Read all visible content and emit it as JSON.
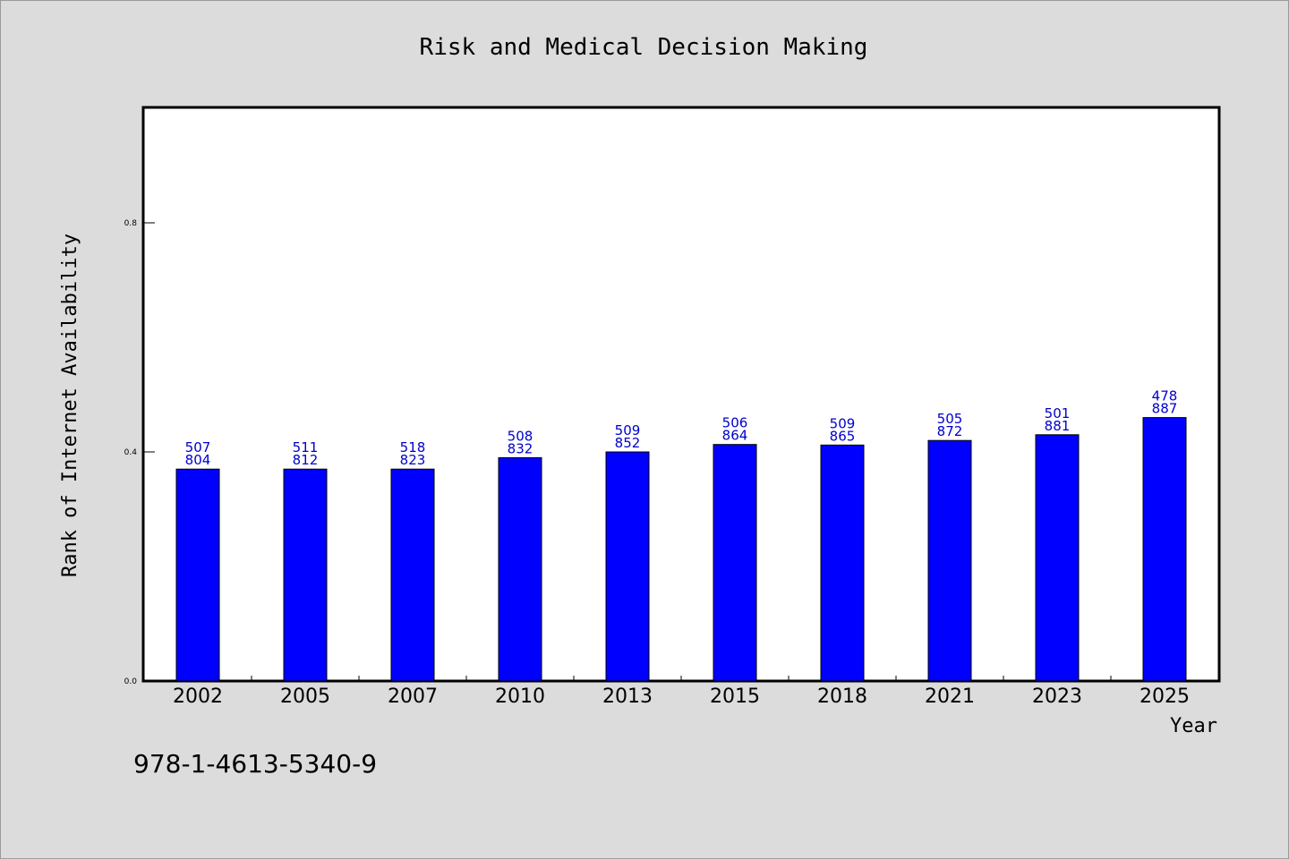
{
  "chart_data": {
    "type": "bar",
    "title": "Risk and Medical Decision Making",
    "xlabel": "Year",
    "ylabel": "Rank of Internet Availability",
    "categories": [
      "2002",
      "2005",
      "2007",
      "2010",
      "2013",
      "2015",
      "2018",
      "2021",
      "2023",
      "2025"
    ],
    "values": [
      0.37,
      0.37,
      0.37,
      0.39,
      0.4,
      0.413,
      0.412,
      0.42,
      0.43,
      0.46
    ],
    "data_labels": [
      [
        "507",
        "804"
      ],
      [
        "511",
        "812"
      ],
      [
        "518",
        "823"
      ],
      [
        "508",
        "832"
      ],
      [
        "509",
        "852"
      ],
      [
        "506",
        "864"
      ],
      [
        "509",
        "865"
      ],
      [
        "505",
        "872"
      ],
      [
        "501",
        "881"
      ],
      [
        "478",
        "887"
      ]
    ],
    "ylim": [
      0,
      1.0
    ],
    "yticks": [
      0.0,
      0.4,
      0.8
    ],
    "ytick_labels": [
      "0.0",
      "0.4",
      "0.8"
    ],
    "grid": false,
    "colors": {
      "bar": "#0000ff",
      "bar_edge": "#000000",
      "data_label": "#0000cc",
      "background": "#dcdcdc",
      "plot_background": "#ffffff"
    }
  },
  "footnote": "978-1-4613-5340-9"
}
